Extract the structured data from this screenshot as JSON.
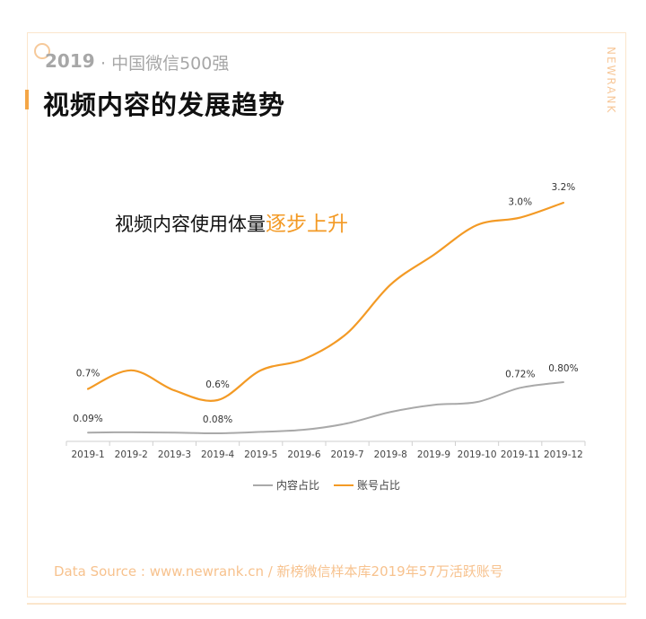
{
  "header": {
    "year": "2019",
    "subtitle": "· 中国微信500强",
    "title": "视频内容的发展趋势",
    "brand": "NEWRANK"
  },
  "headline": {
    "text": "视频内容使用体量",
    "highlight": "逐步上升"
  },
  "colors": {
    "content": "#a9a9a9",
    "account": "#f39a25",
    "accent": "#f4a646"
  },
  "chart_data": {
    "type": "line",
    "categories": [
      "2019-1",
      "2019-2",
      "2019-3",
      "2019-4",
      "2019-5",
      "2019-6",
      "2019-7",
      "2019-8",
      "2019-9",
      "2019-10",
      "2019-11",
      "2019-12"
    ],
    "series": [
      {
        "name": "内容占比",
        "color": "#a9a9a9",
        "values": [
          0.09,
          0.095,
          0.09,
          0.08,
          0.1,
          0.13,
          0.22,
          0.38,
          0.48,
          0.52,
          0.72,
          0.8
        ],
        "labels": {
          "0": "0.09%",
          "3": "0.08%",
          "10": "0.72%",
          "11": "0.80%"
        }
      },
      {
        "name": "账号占比",
        "color": "#f39a25",
        "values": [
          0.7,
          0.95,
          0.68,
          0.55,
          0.95,
          1.1,
          1.45,
          2.1,
          2.5,
          2.9,
          3.0,
          3.2
        ],
        "labels": {
          "0": "0.7%",
          "3": "0.6%",
          "10": "3.0%",
          "11": "3.2%"
        }
      }
    ],
    "legend_position": "bottom",
    "grid": false
  },
  "source": "Data Source : www.newrank.cn  /   新榜微信样本库2019年57万活跃账号"
}
